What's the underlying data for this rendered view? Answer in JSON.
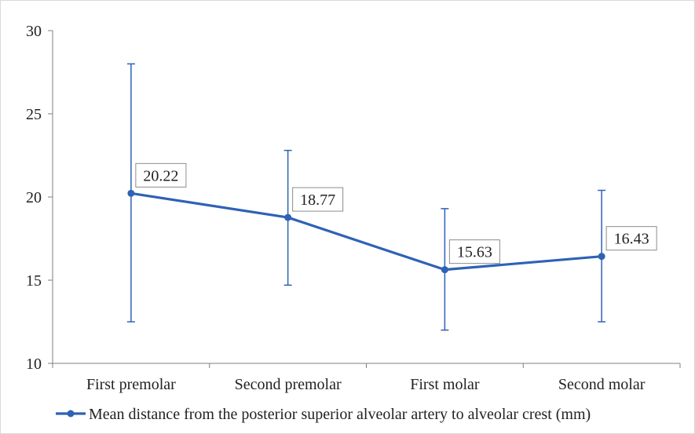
{
  "chart_data": {
    "type": "line",
    "categories": [
      "First premolar",
      "Second premolar",
      "First molar",
      "Second molar"
    ],
    "series": [
      {
        "name": "Mean distance from the posterior superior alveolar artery to alveolar crest (mm)",
        "values": [
          20.22,
          18.77,
          15.63,
          16.43
        ],
        "error_low": [
          12.5,
          14.7,
          12.0,
          12.5
        ],
        "error_high": [
          28.0,
          22.8,
          19.3,
          20.4
        ],
        "color": "#2e62b5"
      }
    ],
    "data_labels": [
      "20.22",
      "18.77",
      "15.63",
      "16.43"
    ],
    "ylim": [
      10,
      30
    ],
    "yticks": [
      10,
      15,
      20,
      25,
      30
    ],
    "ytick_labels": [
      "10",
      "15",
      "20",
      "25",
      "30"
    ],
    "title": "",
    "xlabel": "",
    "ylabel": "",
    "grid": false,
    "legend_position": "bottom"
  }
}
